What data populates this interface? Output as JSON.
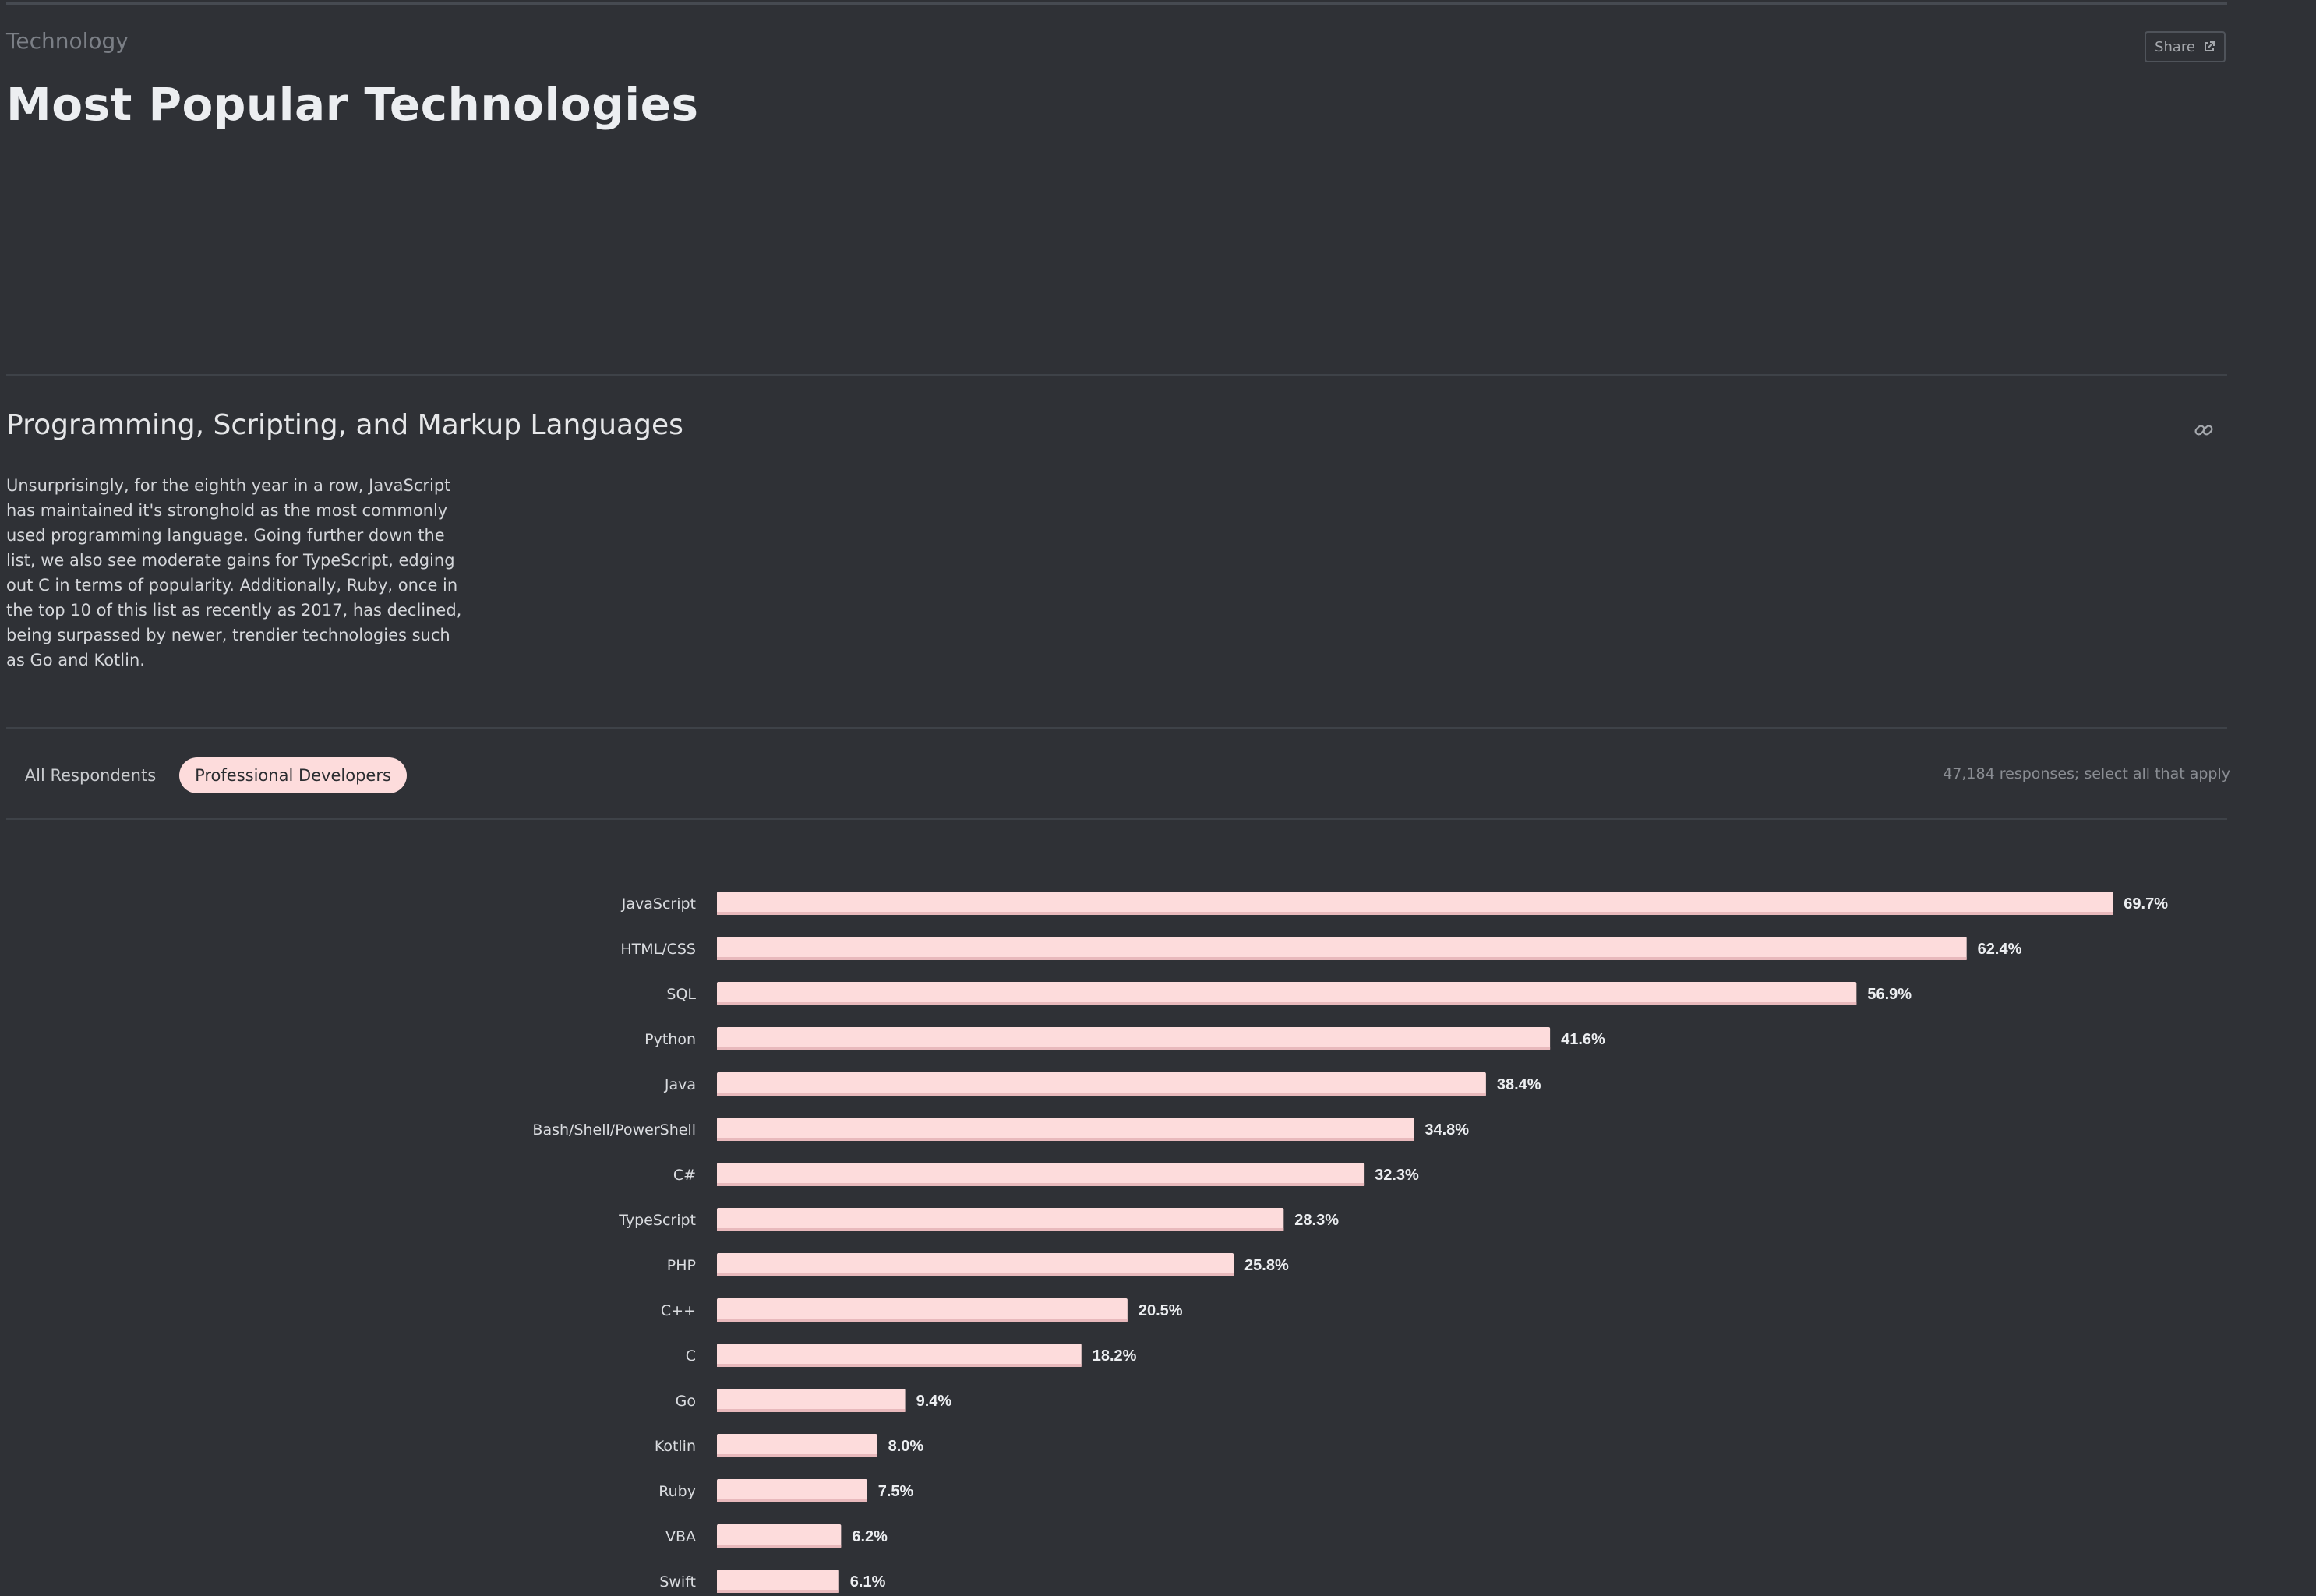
{
  "header": {
    "section": "Technology",
    "title": "Most Popular Technologies",
    "share_label": "Share"
  },
  "subsection": {
    "title": "Programming, Scripting, and Markup Languages",
    "description": "Unsurprisingly, for the eighth year in a row, JavaScript has maintained it's stronghold as the most commonly used programming language. Going further down the list, we also see moderate gains for TypeScript, edging out C in terms of popularity. Additionally, Ruby, once in the top 10 of this list as recently as 2017, has declined, being surpassed by newer, trendier technologies such as Go and Kotlin."
  },
  "tabs": [
    {
      "label": "All Respondents",
      "active": false
    },
    {
      "label": "Professional Developers",
      "active": true
    }
  ],
  "responses_note": "47,184 responses; select all that apply",
  "icons": {
    "share": "external-link-icon",
    "permalink": "link-icon"
  },
  "colors": {
    "background": "#2f3136",
    "bar": "#fddcdc",
    "active_tab": "#fddcdc"
  },
  "chart_data": {
    "type": "bar",
    "orientation": "horizontal",
    "categories": [
      "JavaScript",
      "HTML/CSS",
      "SQL",
      "Python",
      "Java",
      "Bash/Shell/PowerShell",
      "C#",
      "TypeScript",
      "PHP",
      "C++",
      "C",
      "Go",
      "Kotlin",
      "Ruby",
      "VBA",
      "Swift"
    ],
    "values": [
      69.7,
      62.4,
      56.9,
      41.6,
      38.4,
      34.8,
      32.3,
      28.3,
      25.8,
      20.5,
      18.2,
      9.4,
      8.0,
      7.5,
      6.2,
      6.1
    ],
    "value_labels": [
      "69.7%",
      "62.4%",
      "56.9%",
      "41.6%",
      "38.4%",
      "34.8%",
      "32.3%",
      "28.3%",
      "25.8%",
      "20.5%",
      "18.2%",
      "9.4%",
      "8.0%",
      "7.5%",
      "6.2%",
      "6.1%"
    ],
    "unit": "%",
    "grid": false,
    "legend": "none"
  }
}
